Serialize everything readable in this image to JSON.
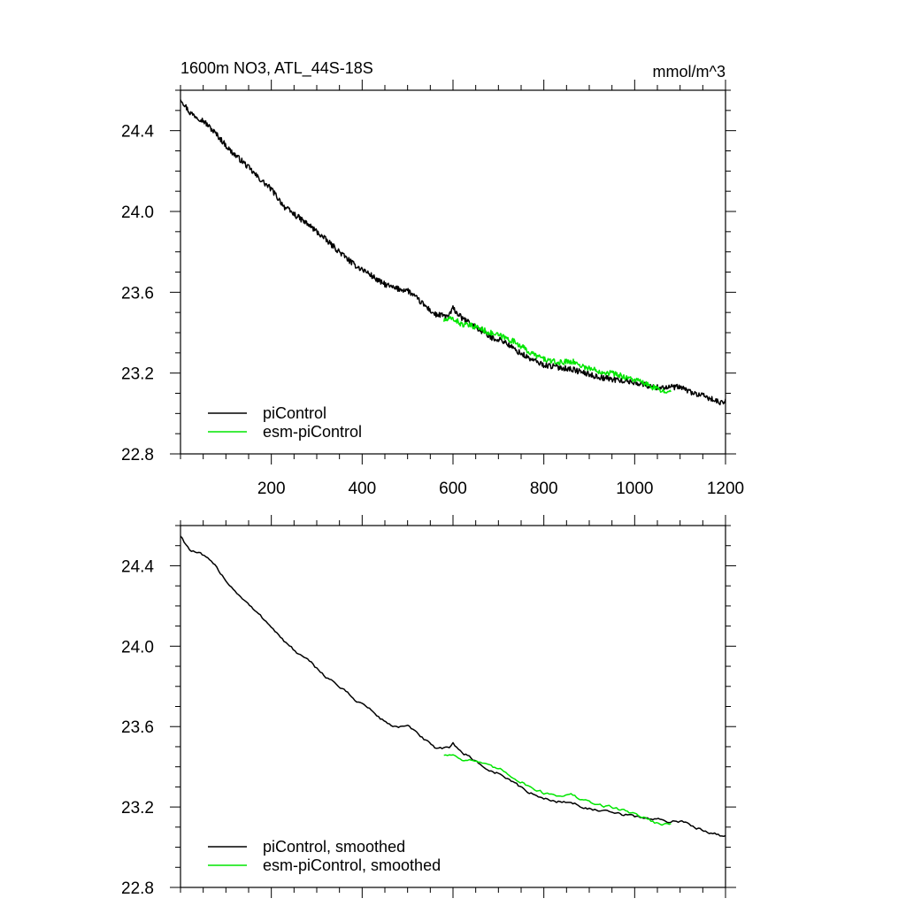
{
  "colors": {
    "background": "#ffffff",
    "axes": "#000000",
    "series_piControl": "#000000",
    "series_esm": "#00e600"
  },
  "header": {
    "title": "1600m NO3, ATL_44S-18S",
    "units": "mmol/m^3"
  },
  "chart_data": [
    {
      "type": "line",
      "panel": "top",
      "title": "1600m NO3, ATL_44S-18S",
      "units": "mmol/m^3",
      "xlim": [
        0,
        1200
      ],
      "ylim": [
        22.8,
        24.6
      ],
      "xticks": [
        200,
        400,
        600,
        800,
        1000,
        1200
      ],
      "xtick_labels": [
        "200",
        "400",
        "600",
        "800",
        "1000",
        "1200"
      ],
      "yticks": [
        22.8,
        23.2,
        23.6,
        24.0,
        24.4
      ],
      "ytick_labels": [
        "22.8",
        "23.2",
        "23.6",
        "24.0",
        "24.4"
      ],
      "legend_position": "bottom-left",
      "series": [
        {
          "name": "piControl",
          "color": "#000000",
          "smoothed": false,
          "x": [
            0,
            20,
            50,
            80,
            110,
            140,
            170,
            200,
            230,
            260,
            290,
            320,
            350,
            380,
            410,
            440,
            470,
            500,
            530,
            560,
            590,
            600,
            620,
            650,
            680,
            710,
            740,
            770,
            800,
            830,
            860,
            890,
            920,
            950,
            980,
            1010,
            1040,
            1070,
            1100,
            1130,
            1160,
            1190,
            1200
          ],
          "y": [
            24.56,
            24.49,
            24.45,
            24.38,
            24.3,
            24.24,
            24.17,
            24.11,
            24.02,
            23.97,
            23.92,
            23.86,
            23.8,
            23.74,
            23.7,
            23.65,
            23.62,
            23.61,
            23.55,
            23.49,
            23.48,
            23.52,
            23.47,
            23.43,
            23.38,
            23.36,
            23.31,
            23.27,
            23.24,
            23.23,
            23.22,
            23.2,
            23.18,
            23.17,
            23.16,
            23.15,
            23.13,
            23.13,
            23.13,
            23.1,
            23.08,
            23.05,
            23.06
          ]
        },
        {
          "name": "esm-piControl",
          "color": "#00e600",
          "smoothed": false,
          "x": [
            580,
            600,
            620,
            650,
            680,
            710,
            740,
            770,
            800,
            830,
            860,
            890,
            920,
            950,
            980,
            1010,
            1040,
            1060,
            1080
          ],
          "y": [
            23.46,
            23.47,
            23.44,
            23.43,
            23.4,
            23.38,
            23.35,
            23.3,
            23.27,
            23.25,
            23.26,
            23.23,
            23.21,
            23.2,
            23.18,
            23.16,
            23.13,
            23.11,
            23.12
          ]
        }
      ]
    },
    {
      "type": "line",
      "panel": "bottom",
      "xlim": [
        0,
        1200
      ],
      "ylim": [
        22.8,
        24.6
      ],
      "xticks": [
        200,
        400,
        600,
        800,
        1000,
        1200
      ],
      "yticks": [
        22.8,
        23.2,
        23.6,
        24.0,
        24.4
      ],
      "ytick_labels": [
        "22.8",
        "23.2",
        "23.6",
        "24.0",
        "24.4"
      ],
      "legend_position": "bottom-left",
      "series": [
        {
          "name": "piControl, smoothed",
          "color": "#000000",
          "smoothed": true,
          "x": [
            0,
            20,
            50,
            80,
            110,
            140,
            170,
            200,
            230,
            260,
            290,
            320,
            350,
            380,
            410,
            440,
            470,
            500,
            530,
            560,
            590,
            600,
            620,
            650,
            680,
            710,
            740,
            770,
            800,
            830,
            860,
            890,
            920,
            950,
            980,
            1010,
            1040,
            1070,
            1100,
            1130,
            1160,
            1190,
            1200
          ],
          "y": [
            24.55,
            24.48,
            24.45,
            24.39,
            24.3,
            24.23,
            24.16,
            24.1,
            24.02,
            23.96,
            23.91,
            23.85,
            23.8,
            23.74,
            23.7,
            23.64,
            23.6,
            23.6,
            23.55,
            23.49,
            23.49,
            23.52,
            23.47,
            23.43,
            23.38,
            23.36,
            23.31,
            23.27,
            23.24,
            23.23,
            23.22,
            23.2,
            23.18,
            23.17,
            23.16,
            23.15,
            23.14,
            23.13,
            23.13,
            23.1,
            23.08,
            23.06,
            23.06
          ]
        },
        {
          "name": "esm-piControl, smoothed",
          "color": "#00e600",
          "smoothed": true,
          "x": [
            580,
            600,
            620,
            650,
            680,
            710,
            740,
            770,
            800,
            830,
            860,
            890,
            920,
            950,
            980,
            1010,
            1040,
            1060,
            1080
          ],
          "y": [
            23.46,
            23.46,
            23.44,
            23.43,
            23.4,
            23.38,
            23.34,
            23.3,
            23.27,
            23.26,
            23.26,
            23.23,
            23.21,
            23.2,
            23.18,
            23.16,
            23.13,
            23.11,
            23.12
          ]
        }
      ]
    }
  ]
}
